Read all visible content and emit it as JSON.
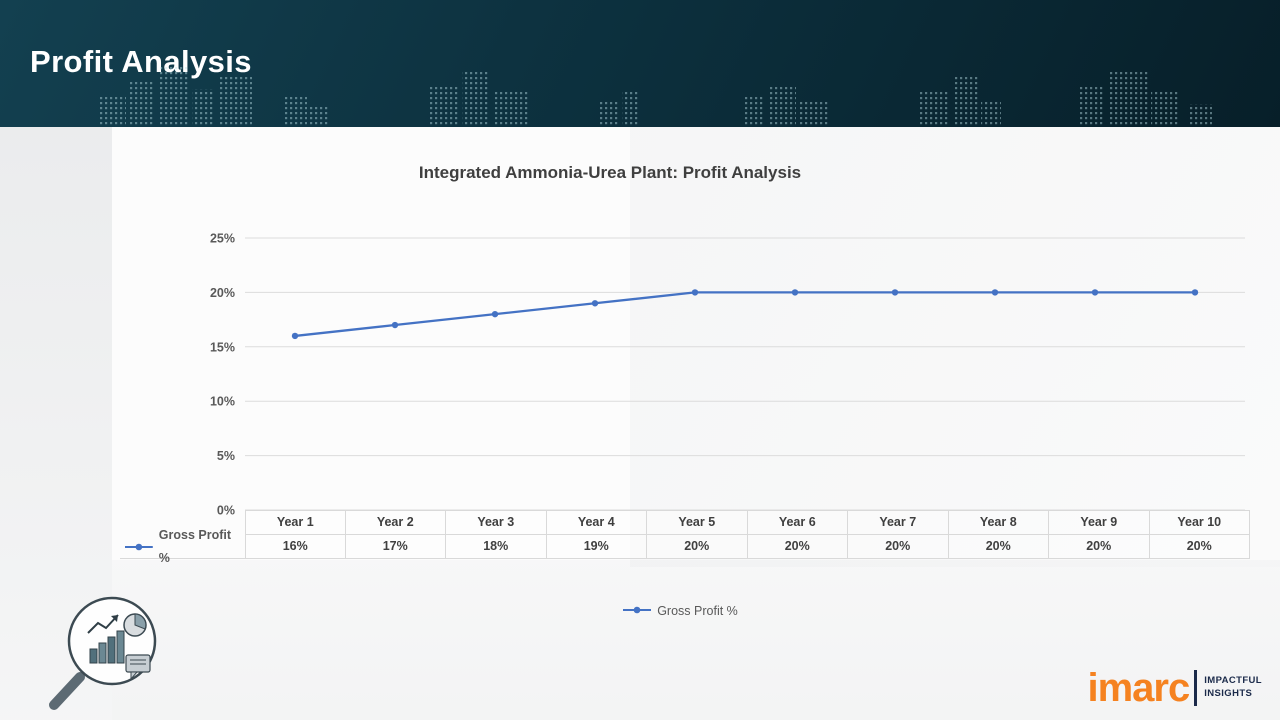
{
  "page": {
    "title": "Profit Analysis"
  },
  "chart_data": {
    "type": "line",
    "title": "Integrated Ammonia-Urea Plant: Profit Analysis",
    "categories": [
      "Year 1",
      "Year 2",
      "Year 3",
      "Year 4",
      "Year 5",
      "Year 6",
      "Year 7",
      "Year 8",
      "Year 9",
      "Year 10"
    ],
    "series": [
      {
        "name": "Gross Profit %",
        "values": [
          16,
          17,
          18,
          19,
          20,
          20,
          20,
          20,
          20,
          20
        ]
      }
    ],
    "xlabel": "",
    "ylabel": "",
    "ylim": [
      0,
      25
    ],
    "ytick_step": 5,
    "ytick_suffix": "%",
    "grid": true,
    "legend_position": "bottom",
    "line_color": "#4472C4",
    "gridline_color": "#dcdcdc",
    "tick_label_color": "#595959"
  },
  "table": {
    "row_label": "Gross Profit %",
    "values": [
      "16%",
      "17%",
      "18%",
      "19%",
      "20%",
      "20%",
      "20%",
      "20%",
      "20%",
      "20%"
    ]
  },
  "legend": {
    "label": "Gross Profit %"
  },
  "branding": {
    "logo_text": "imarc",
    "tagline_line1": "IMPACTFUL",
    "tagline_line2": "INSIGHTS",
    "logo_color": "#f58220"
  }
}
